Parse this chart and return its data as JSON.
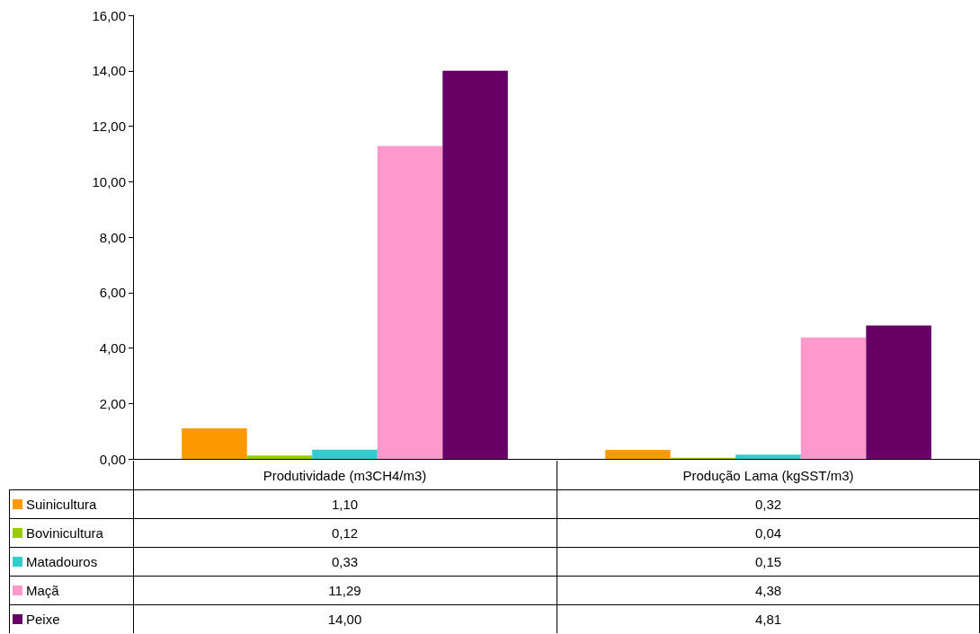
{
  "chart_data": {
    "type": "bar",
    "categories": [
      "Produtividade (m3CH4/m3)",
      "Produção Lama (kgSST/m3)"
    ],
    "series": [
      {
        "name": "Suinicultura",
        "color": "#ff9900",
        "values": [
          1.1,
          0.32
        ],
        "value_labels": [
          "1,10",
          "0,32"
        ]
      },
      {
        "name": "Bovinicultura",
        "color": "#99cc00",
        "values": [
          0.12,
          0.04
        ],
        "value_labels": [
          "0,12",
          "0,04"
        ]
      },
      {
        "name": "Matadouros",
        "color": "#33cccc",
        "values": [
          0.33,
          0.15
        ],
        "value_labels": [
          "0,33",
          "0,15"
        ]
      },
      {
        "name": "Maçã",
        "color": "#ff99cc",
        "values": [
          11.29,
          4.38
        ],
        "value_labels": [
          "11,29",
          "4,38"
        ]
      },
      {
        "name": "Peixe",
        "color": "#660066",
        "values": [
          14.0,
          4.81
        ],
        "value_labels": [
          "14,00",
          "4,81"
        ]
      }
    ],
    "ylim": [
      0,
      16
    ],
    "yticks": [
      {
        "value": 0,
        "label": "0,00"
      },
      {
        "value": 2,
        "label": "2,00"
      },
      {
        "value": 4,
        "label": "4,00"
      },
      {
        "value": 6,
        "label": "6,00"
      },
      {
        "value": 8,
        "label": "8,00"
      },
      {
        "value": 10,
        "label": "10,00"
      },
      {
        "value": 12,
        "label": "12,00"
      },
      {
        "value": 14,
        "label": "14,00"
      },
      {
        "value": 16,
        "label": "16,00"
      }
    ],
    "grid": false,
    "legend": "bottom"
  }
}
